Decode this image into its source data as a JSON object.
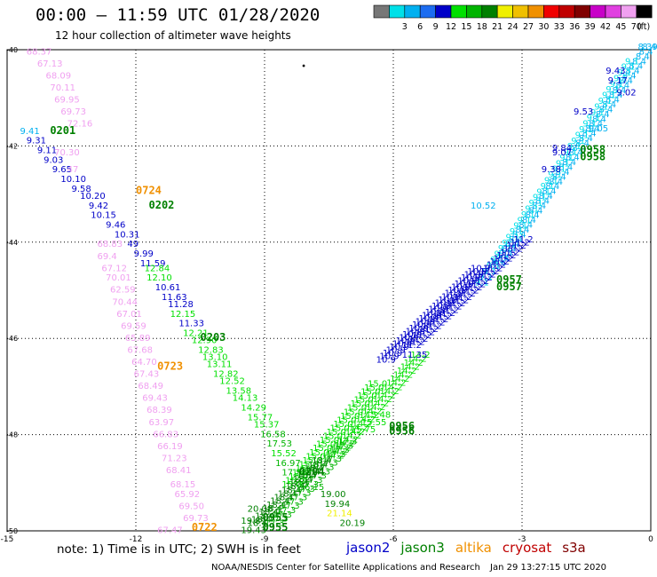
{
  "header": {
    "title": "00:00 – 11:59 UTC 01/28/2020",
    "subtitle": "12 hour collection of altimeter wave heights"
  },
  "legend": {
    "unit": "(ft)",
    "bins": [
      {
        "label": "",
        "color": "#777777"
      },
      {
        "label": "3",
        "color": "#00e0e8"
      },
      {
        "label": "6",
        "color": "#00b0f0"
      },
      {
        "label": "9",
        "color": "#1c6cf0"
      },
      {
        "label": "12",
        "color": "#0000c8"
      },
      {
        "label": "15",
        "color": "#00e000"
      },
      {
        "label": "18",
        "color": "#00b400"
      },
      {
        "label": "21",
        "color": "#008000"
      },
      {
        "label": "24",
        "color": "#f0f000"
      },
      {
        "label": "27",
        "color": "#f0c000"
      },
      {
        "label": "30",
        "color": "#f09000"
      },
      {
        "label": "33",
        "color": "#f00000"
      },
      {
        "label": "36",
        "color": "#c00000"
      },
      {
        "label": "39",
        "color": "#800000"
      },
      {
        "label": "42",
        "color": "#c800c8"
      },
      {
        "label": "45",
        "color": "#e040e0"
      },
      {
        "label": "70",
        "color": "#f0a0f0"
      },
      {
        "label": "",
        "color": "#000000"
      }
    ]
  },
  "footer": {
    "note": "note:  1) Time is in UTC;  2) SWH is in feet",
    "credit": "NOAA/NESDIS Center for Satellite Applications and Research",
    "timestamp": "Jan 29 13:27:15 UTC 2020"
  },
  "satellites": [
    {
      "name": "jason2",
      "color": "#0000c8"
    },
    {
      "name": "jason3",
      "color": "#008000"
    },
    {
      "name": "altika",
      "color": "#f09000"
    },
    {
      "name": "cryosat",
      "color": "#c00000"
    },
    {
      "name": "s3a",
      "color": "#800000"
    }
  ],
  "chart_data": {
    "type": "map",
    "xlim": [
      -15,
      0
    ],
    "ylim": [
      -50,
      -40
    ],
    "x_ticks": [
      {
        "value": -15,
        "label": "-15"
      },
      {
        "value": -12,
        "label": "-12"
      },
      {
        "value": -9,
        "label": "-9"
      },
      {
        "value": -6,
        "label": "-6"
      },
      {
        "value": -3,
        "label": "-3"
      },
      {
        "value": 0,
        "label": "0"
      }
    ],
    "y_ticks": [
      {
        "value": -40,
        "label": "-40"
      },
      {
        "value": -42,
        "label": "-42"
      },
      {
        "value": -44,
        "label": "-44"
      },
      {
        "value": -46,
        "label": "-46"
      },
      {
        "value": -48,
        "label": "-48"
      },
      {
        "value": -50,
        "label": "-50"
      }
    ],
    "grid": true,
    "pass_times": [
      {
        "lon": -14.0,
        "lat": -41.75,
        "text": "0201",
        "color": "#008000"
      },
      {
        "lon": -12.0,
        "lat": -43.0,
        "text": "0724",
        "color": "#f09000"
      },
      {
        "lon": -11.7,
        "lat": -43.3,
        "text": "0202",
        "color": "#008000"
      },
      {
        "lon": -10.5,
        "lat": -46.05,
        "text": "0203",
        "color": "#008000"
      },
      {
        "lon": -11.5,
        "lat": -46.65,
        "text": "0723",
        "color": "#f09000"
      },
      {
        "lon": -8.2,
        "lat": -48.85,
        "text": "0204",
        "color": "#008000"
      },
      {
        "lon": -9.05,
        "lat": -49.8,
        "text": "0955",
        "color": "#008000"
      },
      {
        "lon": -9.05,
        "lat": -50.0,
        "text": "0955",
        "color": "#008000"
      },
      {
        "lon": -10.7,
        "lat": -50.0,
        "text": "0722",
        "color": "#f09000"
      },
      {
        "lon": -6.1,
        "lat": -47.9,
        "text": "0956",
        "color": "#008000"
      },
      {
        "lon": -6.1,
        "lat": -48.0,
        "text": "0956",
        "color": "#008000"
      },
      {
        "lon": -3.6,
        "lat": -44.85,
        "text": "0957",
        "color": "#008000"
      },
      {
        "lon": -3.6,
        "lat": -45.0,
        "text": "0957",
        "color": "#008000"
      },
      {
        "lon": -1.65,
        "lat": -42.15,
        "text": "0958",
        "color": "#008000"
      },
      {
        "lon": -1.65,
        "lat": -42.3,
        "text": "0958",
        "color": "#008000"
      }
    ],
    "swh_values": [
      {
        "lon": -14.55,
        "lat": -40.1,
        "text": "68.37",
        "color": "#f0a0f0"
      },
      {
        "lon": -14.3,
        "lat": -40.35,
        "text": "67.13",
        "color": "#f0a0f0"
      },
      {
        "lon": -14.1,
        "lat": -40.6,
        "text": "68.09",
        "color": "#f0a0f0"
      },
      {
        "lon": -14.0,
        "lat": -40.85,
        "text": "70.11",
        "color": "#f0a0f0"
      },
      {
        "lon": -13.9,
        "lat": -41.1,
        "text": "69.95",
        "color": "#f0a0f0"
      },
      {
        "lon": -13.75,
        "lat": -41.35,
        "text": "69.73",
        "color": "#f0a0f0"
      },
      {
        "lon": -13.6,
        "lat": -41.6,
        "text": "72.16",
        "color": "#f0a0f0"
      },
      {
        "lon": -14.7,
        "lat": -41.75,
        "text": "9.41",
        "color": "#00b0f0"
      },
      {
        "lon": -14.55,
        "lat": -41.95,
        "text": "9.31",
        "color": "#0000c8"
      },
      {
        "lon": -14.3,
        "lat": -42.15,
        "text": "9.11",
        "color": "#0000c8"
      },
      {
        "lon": -13.9,
        "lat": -42.2,
        "text": "70.30",
        "color": "#f0a0f0"
      },
      {
        "lon": -14.15,
        "lat": -42.35,
        "text": "9.03",
        "color": "#0000c8"
      },
      {
        "lon": -13.95,
        "lat": -42.55,
        "text": "9.65",
        "color": "#0000c8"
      },
      {
        "lon": -13.6,
        "lat": -42.55,
        "text": "47",
        "color": "#f0a0f0"
      },
      {
        "lon": -13.75,
        "lat": -42.75,
        "text": "10.10",
        "color": "#0000c8"
      },
      {
        "lon": -13.5,
        "lat": -42.95,
        "text": "9.58",
        "color": "#0000c8"
      },
      {
        "lon": -13.3,
        "lat": -43.1,
        "text": "10.20",
        "color": "#0000c8"
      },
      {
        "lon": -13.1,
        "lat": -43.3,
        "text": "9.42",
        "color": "#0000c8"
      },
      {
        "lon": -13.05,
        "lat": -43.5,
        "text": "10.15",
        "color": "#0000c8"
      },
      {
        "lon": -12.7,
        "lat": -43.7,
        "text": "9.46",
        "color": "#0000c8"
      },
      {
        "lon": -12.5,
        "lat": -43.9,
        "text": "10.31",
        "color": "#0000c8"
      },
      {
        "lon": -12.9,
        "lat": -44.1,
        "text": "68.83",
        "color": "#f0a0f0"
      },
      {
        "lon": -12.2,
        "lat": -44.1,
        "text": "49",
        "color": "#0000c8"
      },
      {
        "lon": -12.05,
        "lat": -44.3,
        "text": "9.99",
        "color": "#0000c8"
      },
      {
        "lon": -12.9,
        "lat": -44.35,
        "text": "69.4",
        "color": "#f0a0f0"
      },
      {
        "lon": -11.9,
        "lat": -44.5,
        "text": "11.59",
        "color": "#0000c8"
      },
      {
        "lon": -12.8,
        "lat": -44.6,
        "text": "67.12",
        "color": "#f0a0f0"
      },
      {
        "lon": -11.8,
        "lat": -44.6,
        "text": "12.84",
        "color": "#00e000"
      },
      {
        "lon": -12.7,
        "lat": -44.8,
        "text": "70.01",
        "color": "#f0a0f0"
      },
      {
        "lon": -11.75,
        "lat": -44.8,
        "text": "12.10",
        "color": "#00e000"
      },
      {
        "lon": -11.55,
        "lat": -45.0,
        "text": "10.61",
        "color": "#0000c8"
      },
      {
        "lon": -12.6,
        "lat": -45.05,
        "text": "62.59",
        "color": "#f0a0f0"
      },
      {
        "lon": -11.4,
        "lat": -45.2,
        "text": "11.63",
        "color": "#0000c8"
      },
      {
        "lon": -12.55,
        "lat": -45.3,
        "text": "70.44",
        "color": "#f0a0f0"
      },
      {
        "lon": -11.25,
        "lat": -45.35,
        "text": "11.28",
        "color": "#0000c8"
      },
      {
        "lon": -12.45,
        "lat": -45.55,
        "text": "67.01",
        "color": "#f0a0f0"
      },
      {
        "lon": -11.2,
        "lat": -45.55,
        "text": "12.15",
        "color": "#00e000"
      },
      {
        "lon": -11.0,
        "lat": -45.75,
        "text": "11.33",
        "color": "#0000c8"
      },
      {
        "lon": -12.35,
        "lat": -45.8,
        "text": "69.59",
        "color": "#f0a0f0"
      },
      {
        "lon": -10.9,
        "lat": -45.95,
        "text": "12.21",
        "color": "#00e000"
      },
      {
        "lon": -12.25,
        "lat": -46.05,
        "text": "65.89",
        "color": "#f0a0f0"
      },
      {
        "lon": -10.7,
        "lat": -46.1,
        "text": "12.90",
        "color": "#00e000"
      },
      {
        "lon": -12.2,
        "lat": -46.3,
        "text": "67.68",
        "color": "#f0a0f0"
      },
      {
        "lon": -10.55,
        "lat": -46.3,
        "text": "12.83",
        "color": "#00e000"
      },
      {
        "lon": -10.45,
        "lat": -46.45,
        "text": "13.10",
        "color": "#00e000"
      },
      {
        "lon": -12.1,
        "lat": -46.55,
        "text": "64.70",
        "color": "#f0a0f0"
      },
      {
        "lon": -10.35,
        "lat": -46.6,
        "text": "13.11",
        "color": "#00e000"
      },
      {
        "lon": -12.05,
        "lat": -46.8,
        "text": "67.43",
        "color": "#f0a0f0"
      },
      {
        "lon": -10.2,
        "lat": -46.8,
        "text": "12.82",
        "color": "#00e000"
      },
      {
        "lon": -10.05,
        "lat": -46.95,
        "text": "12.52",
        "color": "#00e000"
      },
      {
        "lon": -11.95,
        "lat": -47.05,
        "text": "68.49",
        "color": "#f0a0f0"
      },
      {
        "lon": -9.9,
        "lat": -47.15,
        "text": "13.58",
        "color": "#00e000"
      },
      {
        "lon": -11.85,
        "lat": -47.3,
        "text": "69.43",
        "color": "#f0a0f0"
      },
      {
        "lon": -9.75,
        "lat": -47.3,
        "text": "14.13",
        "color": "#00e000"
      },
      {
        "lon": -9.55,
        "lat": -47.5,
        "text": "14.29",
        "color": "#00e000"
      },
      {
        "lon": -11.75,
        "lat": -47.55,
        "text": "68.39",
        "color": "#f0a0f0"
      },
      {
        "lon": -9.4,
        "lat": -47.7,
        "text": "15.77",
        "color": "#00e000"
      },
      {
        "lon": -11.7,
        "lat": -47.8,
        "text": "63.97",
        "color": "#f0a0f0"
      },
      {
        "lon": -9.25,
        "lat": -47.85,
        "text": "15.37",
        "color": "#00e000"
      },
      {
        "lon": -11.6,
        "lat": -48.05,
        "text": "66.83",
        "color": "#f0a0f0"
      },
      {
        "lon": -9.1,
        "lat": -48.05,
        "text": "16.58",
        "color": "#00b400"
      },
      {
        "lon": -8.95,
        "lat": -48.25,
        "text": "17.53",
        "color": "#00b400"
      },
      {
        "lon": -11.5,
        "lat": -48.3,
        "text": "66.19",
        "color": "#f0a0f0"
      },
      {
        "lon": -8.85,
        "lat": -48.45,
        "text": "15.52",
        "color": "#00e000"
      },
      {
        "lon": -11.4,
        "lat": -48.55,
        "text": "71.23",
        "color": "#f0a0f0"
      },
      {
        "lon": -8.75,
        "lat": -48.65,
        "text": "16.97",
        "color": "#00b400"
      },
      {
        "lon": -11.3,
        "lat": -48.8,
        "text": "68.41",
        "color": "#f0a0f0"
      },
      {
        "lon": -8.6,
        "lat": -48.85,
        "text": "17.58",
        "color": "#00b400"
      },
      {
        "lon": -11.2,
        "lat": -49.1,
        "text": "68.15",
        "color": "#f0a0f0"
      },
      {
        "lon": -8.2,
        "lat": -49.15,
        "text": "16.15",
        "color": "#00b400"
      },
      {
        "lon": -11.1,
        "lat": -49.3,
        "text": "65.92",
        "color": "#f0a0f0"
      },
      {
        "lon": -7.7,
        "lat": -49.3,
        "text": "19.00",
        "color": "#008000"
      },
      {
        "lon": -11.0,
        "lat": -49.55,
        "text": "69.50",
        "color": "#f0a0f0"
      },
      {
        "lon": -7.6,
        "lat": -49.5,
        "text": "19.94",
        "color": "#008000"
      },
      {
        "lon": -9.4,
        "lat": -49.6,
        "text": "20.08",
        "color": "#008000"
      },
      {
        "lon": -10.9,
        "lat": -49.8,
        "text": "69.73",
        "color": "#f0a0f0"
      },
      {
        "lon": -7.55,
        "lat": -49.7,
        "text": "21.14",
        "color": "#f0f000"
      },
      {
        "lon": -9.55,
        "lat": -49.85,
        "text": "19.89",
        "color": "#008000"
      },
      {
        "lon": -7.25,
        "lat": -49.9,
        "text": "20.19",
        "color": "#008000"
      },
      {
        "lon": -11.5,
        "lat": -50.05,
        "text": "67.47",
        "color": "#f0a0f0"
      },
      {
        "lon": -9.55,
        "lat": -50.05,
        "text": "19.43",
        "color": "#008000"
      },
      {
        "lon": -6.65,
        "lat": -47.65,
        "text": "15.48",
        "color": "#00e000"
      },
      {
        "lon": -6.75,
        "lat": -47.8,
        "text": "15.55",
        "color": "#00e000"
      },
      {
        "lon": -7.0,
        "lat": -47.95,
        "text": "15.75",
        "color": "#00e000"
      },
      {
        "lon": -5.8,
        "lat": -46.4,
        "text": "11.35",
        "color": "#0000c8"
      },
      {
        "lon": -4.2,
        "lat": -43.3,
        "text": "10.52",
        "color": "#00b0f0"
      },
      {
        "lon": -2.3,
        "lat": -42.1,
        "text": "9.84",
        "color": "#0000c8"
      },
      {
        "lon": -2.3,
        "lat": -42.2,
        "text": "9.07",
        "color": "#0000c8"
      },
      {
        "lon": -2.55,
        "lat": -42.55,
        "text": "9.38",
        "color": "#0000c8"
      },
      {
        "lon": -1.8,
        "lat": -41.35,
        "text": "9.53",
        "color": "#0000c8"
      },
      {
        "lon": -1.45,
        "lat": -41.7,
        "text": "9.05",
        "color": "#00b0f0"
      },
      {
        "lon": -1.05,
        "lat": -40.5,
        "text": "9.43",
        "color": "#0000c8"
      },
      {
        "lon": -1.0,
        "lat": -40.7,
        "text": "9.17",
        "color": "#0000c8"
      },
      {
        "lon": -0.8,
        "lat": -40.95,
        "text": "9.02",
        "color": "#0000c8"
      },
      {
        "lon": -0.3,
        "lat": -40.0,
        "text": "8.39",
        "color": "#00b0f0"
      }
    ],
    "dense_tracks": [
      {
        "from": [
          -0.2,
          -40.0
        ],
        "to": [
          -3.7,
          -44.5
        ],
        "count": 46,
        "color": "#00b0f0",
        "sample": "8.4"
      },
      {
        "from": [
          -0.6,
          -40.3
        ],
        "to": [
          -4.1,
          -44.9
        ],
        "count": 40,
        "color": "#00e0e8",
        "sample": "9.1"
      },
      {
        "from": [
          -3.2,
          -44.0
        ],
        "to": [
          -5.8,
          -46.2
        ],
        "count": 34,
        "color": "#0000c8",
        "sample": "11.2"
      },
      {
        "from": [
          -4.2,
          -44.6
        ],
        "to": [
          -6.4,
          -46.5
        ],
        "count": 30,
        "color": "#0000c8",
        "sample": "10.9"
      },
      {
        "from": [
          -5.6,
          -46.4
        ],
        "to": [
          -7.6,
          -48.5
        ],
        "count": 26,
        "color": "#00e000",
        "sample": "14.2"
      },
      {
        "from": [
          -6.6,
          -47.0
        ],
        "to": [
          -8.6,
          -49.1
        ],
        "count": 26,
        "color": "#00e000",
        "sample": "15.0"
      },
      {
        "from": [
          -7.3,
          -48.2
        ],
        "to": [
          -9.0,
          -49.9
        ],
        "count": 20,
        "color": "#00b400",
        "sample": "17.3"
      },
      {
        "from": [
          -7.9,
          -48.6
        ],
        "to": [
          -9.4,
          -49.9
        ],
        "count": 18,
        "color": "#008000",
        "sample": "18.4"
      }
    ],
    "marker": {
      "lon": -8.15,
      "lat": -40.4,
      "text": "•"
    }
  }
}
